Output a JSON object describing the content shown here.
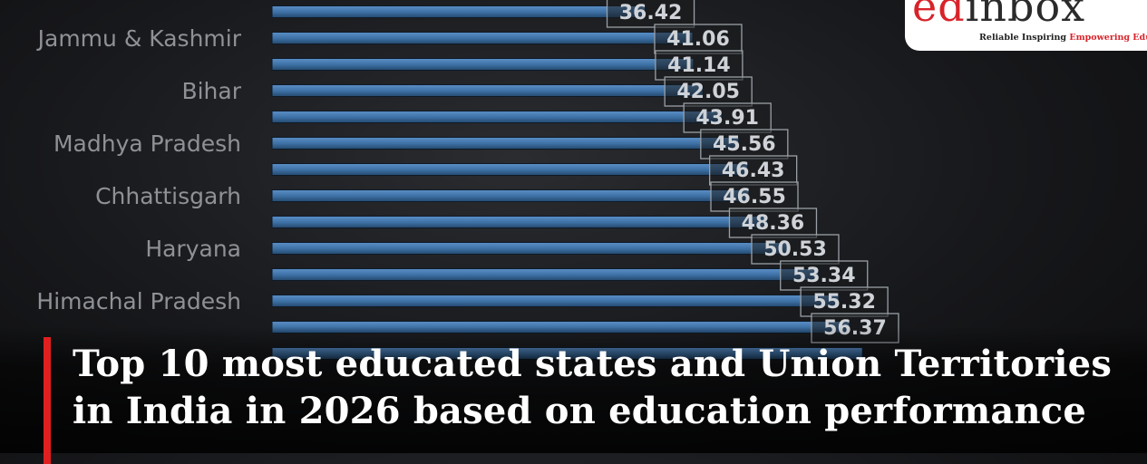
{
  "logo": {
    "ed": "ed",
    "inbox": "inbox",
    "tagline_a": "Reliable Inspiring ",
    "tagline_b": "Empowering Education"
  },
  "headline": "Top 10 most educated states and Union Territories in India in 2026 based on education performance",
  "chart_data": {
    "type": "bar",
    "orientation": "horizontal",
    "categories": [
      "",
      "Jammu & Kashmir",
      "",
      "Bihar",
      "",
      "Madhya Pradesh",
      "",
      "Chhattisgarh",
      "",
      "Haryana",
      "",
      "Himachal Pradesh",
      "",
      ""
    ],
    "values": [
      36.42,
      41.06,
      41.14,
      42.05,
      43.91,
      45.56,
      46.43,
      46.55,
      48.36,
      50.53,
      53.34,
      55.32,
      56.37,
      57.63
    ],
    "value_labels": [
      "36.42",
      "41.06",
      "41.14",
      "42.05",
      "43.91",
      "45.56",
      "46.43",
      "46.55",
      "48.36",
      "50.53",
      "53.34",
      "55.32",
      "56.37",
      ""
    ],
    "xlim": [
      0,
      80
    ],
    "grid": false,
    "legend": "none",
    "bar_color": "#3f73a8"
  }
}
